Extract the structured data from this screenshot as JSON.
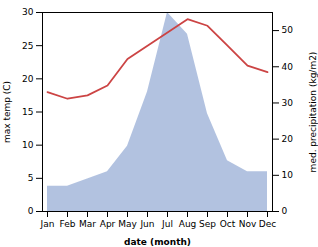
{
  "chart_data": {
    "type": "line",
    "categories": [
      "Jan",
      "Feb",
      "Mar",
      "Apr",
      "May",
      "Jun",
      "Jul",
      "Aug",
      "Sep",
      "Oct",
      "Nov",
      "Dec"
    ],
    "xlabel": "date (month)",
    "ylabel": "max temp (C)",
    "y2label": "med. precipitation (kg/m2)",
    "ylim": [
      0,
      30
    ],
    "yticks": [
      0,
      5,
      10,
      15,
      20,
      25,
      30
    ],
    "y2lim": [
      0,
      55
    ],
    "y2ticks": [
      0,
      10,
      20,
      30,
      40,
      50
    ],
    "grid": false,
    "series": [
      {
        "type": "area",
        "axis": "y2",
        "color": "#aabbdd",
        "values": [
          7,
          7,
          9,
          11,
          18,
          33,
          55,
          49,
          27,
          14,
          11,
          11
        ]
      },
      {
        "type": "line",
        "color": "#cc4444",
        "values": [
          18,
          17,
          17.5,
          19,
          23,
          25,
          27,
          29,
          28,
          25,
          22,
          21
        ]
      }
    ]
  }
}
